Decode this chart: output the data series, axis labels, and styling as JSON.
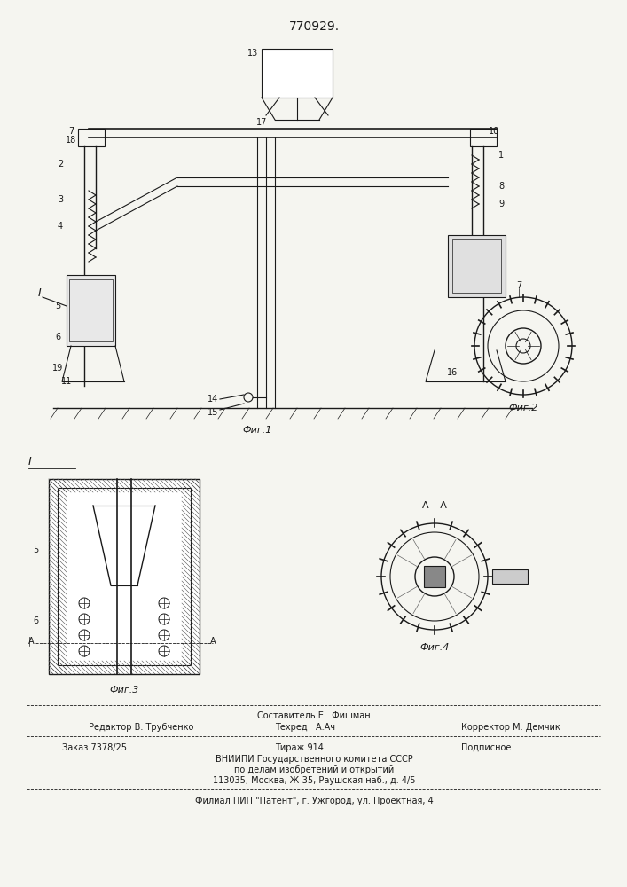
{
  "patent_number": "770929.",
  "bg_color": "#f5f5f0",
  "line_color": "#1a1a1a",
  "hatch_color": "#1a1a1a",
  "footer_lines": [
    "Составитель Е.  Фишман",
    "Редактор В. Трубченко       Техред   А.Ач            Корректор М. Демчик",
    "Заказ 7378/25              Тираж 914              Подписное",
    "ВНИИПИ Государственного комитета СССР",
    "по делам изобретений и открытий",
    "113035, Москва, Ж-35, Раушская наб., д. 4/5",
    "Филиал ПИП \"Патент\", г. Ужгород, ул. Проектная, 4"
  ],
  "fig_labels": [
    "Фиг.1",
    "Фиг.2",
    "Фиг.3",
    "Фиг.4"
  ],
  "section_label": "А – А"
}
